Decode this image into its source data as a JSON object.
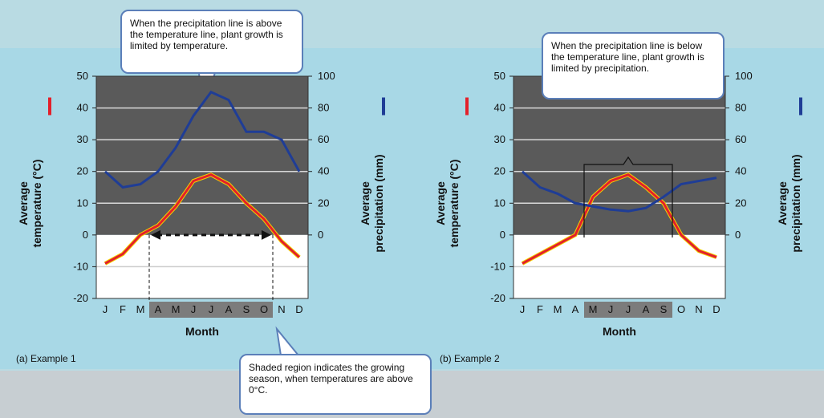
{
  "panels": [
    {
      "id": "a",
      "caption": "(a) Example 1",
      "chart_data": {
        "type": "line",
        "xlabel": "Month",
        "categories": [
          "J",
          "F",
          "M",
          "A",
          "M",
          "J",
          "J",
          "A",
          "S",
          "O",
          "N",
          "D"
        ],
        "growing_season": [
          "A",
          "M",
          "J",
          "J",
          "A",
          "S",
          "O"
        ],
        "y_left": {
          "label": "Average temperature (°C)",
          "lim": [
            -20,
            50
          ],
          "ticks": [
            -20,
            -10,
            0,
            10,
            20,
            30,
            40,
            50
          ]
        },
        "y_right": {
          "label": "Average precipitation (mm)",
          "lim": [
            0,
            100
          ],
          "ticks": [
            0,
            20,
            40,
            60,
            80,
            100
          ]
        },
        "series": [
          {
            "axis": "left",
            "color": "#e3202a",
            "values": [
              -9,
              -6,
              0,
              3,
              9,
              17,
              19,
              16,
              10,
              5,
              -2,
              -7
            ]
          },
          {
            "axis": "right",
            "color": "#1f3d96",
            "values": [
              40,
              30,
              32,
              40,
              55,
              75,
              90,
              85,
              65,
              65,
              60,
              40
            ]
          }
        ],
        "grid": true
      },
      "callout": "When the precipitation line is above the temperature line, plant growth is limited by temperature."
    },
    {
      "id": "b",
      "caption": "(b) Example 2",
      "chart_data": {
        "type": "line",
        "xlabel": "Month",
        "categories": [
          "J",
          "F",
          "M",
          "A",
          "M",
          "J",
          "J",
          "A",
          "S",
          "O",
          "N",
          "D"
        ],
        "growing_season": [
          "M",
          "J",
          "J",
          "A",
          "S"
        ],
        "y_left": {
          "label": "Average temperature (°C)",
          "lim": [
            -20,
            50
          ],
          "ticks": [
            -20,
            -10,
            0,
            10,
            20,
            30,
            40,
            50
          ]
        },
        "y_right": {
          "label": "Average precipitation (mm)",
          "lim": [
            0,
            100
          ],
          "ticks": [
            0,
            20,
            40,
            60,
            80,
            100
          ]
        },
        "series": [
          {
            "axis": "left",
            "color": "#e3202a",
            "values": [
              -9,
              -6,
              -3,
              0,
              12,
              17,
              19,
              15,
              10,
              0,
              -5,
              -7
            ]
          },
          {
            "axis": "right",
            "color": "#1f3d96",
            "values": [
              40,
              30,
              26,
              20,
              18,
              16,
              15,
              17,
              24,
              32,
              34,
              36
            ]
          }
        ],
        "grid": true
      },
      "callout": "When the precipitation line is below the temperature line, plant growth is limited by precipitation."
    }
  ],
  "bottom_callout": "Shaded region indicates the growing season, when temperatures are above 0°C."
}
